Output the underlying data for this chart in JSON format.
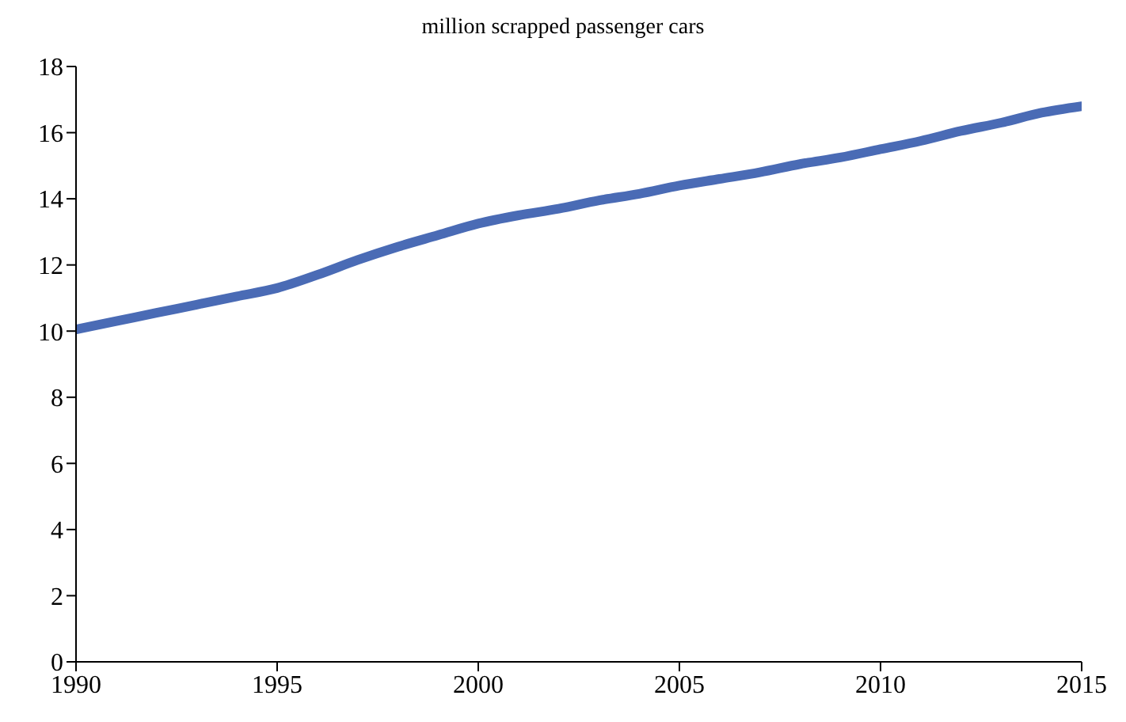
{
  "chart_data": {
    "type": "line",
    "title": "million scrapped passenger cars",
    "x": [
      1990,
      1991,
      1992,
      1993,
      1994,
      1995,
      1996,
      1997,
      1998,
      1999,
      2000,
      2001,
      2002,
      2003,
      2004,
      2005,
      2006,
      2007,
      2008,
      2009,
      2010,
      2011,
      2012,
      2013,
      2014,
      2015
    ],
    "series": [
      {
        "color": "#4a6bb5",
        "values": [
          10.05,
          10.3,
          10.55,
          10.8,
          11.05,
          11.3,
          11.7,
          12.15,
          12.55,
          12.9,
          13.25,
          13.5,
          13.7,
          13.95,
          14.15,
          14.4,
          14.6,
          14.8,
          15.05,
          15.25,
          15.5,
          15.75,
          16.05,
          16.3,
          16.6,
          16.8
        ]
      }
    ],
    "xlim": [
      1990,
      2015
    ],
    "xticks": [
      1990,
      1995,
      2000,
      2005,
      2010,
      2015
    ],
    "ylim": [
      0,
      18
    ],
    "yticks": [
      0,
      2,
      4,
      6,
      8,
      10,
      12,
      14,
      16,
      18
    ],
    "grid": false,
    "legend": false,
    "marker": "none",
    "line_style": "solid"
  }
}
